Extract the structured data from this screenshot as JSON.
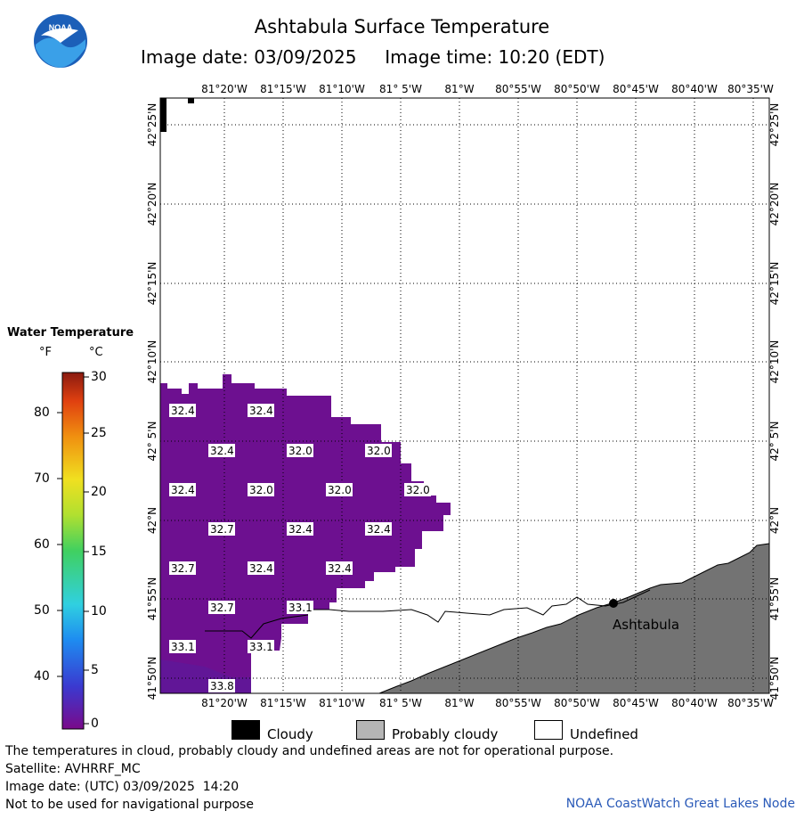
{
  "header": {
    "title": "Ashtabula Surface Temperature",
    "subtitle_date": "Image date: 03/09/2025",
    "subtitle_time": "Image time: 10:20 (EDT)"
  },
  "logo": {
    "text": "NOAA",
    "icon": "noaa-logo-icon"
  },
  "map": {
    "lon_ticks": [
      "81°20'W",
      "81°15'W",
      "81°10'W",
      "81° 5'W",
      "81°W",
      "80°55'W",
      "80°50'W",
      "80°45'W",
      "80°40'W",
      "80°35'W"
    ],
    "lat_ticks": [
      "42°25'N",
      "42°20'N",
      "42°15'N",
      "42°10'N",
      "42° 5'N",
      "42°N",
      "41°55'N",
      "41°50'N"
    ],
    "city": "Ashtabula",
    "temperatures": [
      "32.4",
      "32.4",
      "32.4",
      "32.0",
      "32.0",
      "32.4",
      "32.0",
      "32.0",
      "32.0",
      "32.7",
      "32.4",
      "32.4",
      "32.7",
      "32.4",
      "32.4",
      "32.7",
      "33.1",
      "33.1",
      "33.1",
      "33.8"
    ],
    "colors": {
      "water": "#6f0f96",
      "land": "#737373",
      "cloud": "#000000"
    }
  },
  "legend": {
    "title": "Water Temperature",
    "unit_f": "°F",
    "unit_c": "°C",
    "f_ticks": [
      "80",
      "70",
      "60",
      "50",
      "40"
    ],
    "c_ticks": [
      "30",
      "25",
      "20",
      "15",
      "10",
      "5",
      "0"
    ]
  },
  "key": {
    "cloudy": "Cloudy",
    "probably_cloudy": "Probably cloudy",
    "undefined": "Undefined"
  },
  "footer": {
    "note": "The temperatures in cloud, probably cloudy and undefined areas are not for operational purpose.",
    "satellite": "Satellite: AVHRRF_MC",
    "utc_date": "Image date: (UTC) 03/09/2025  14:20",
    "nav_warning": "Not to be used for navigational purpose",
    "credit": "NOAA CoastWatch Great Lakes Node"
  }
}
